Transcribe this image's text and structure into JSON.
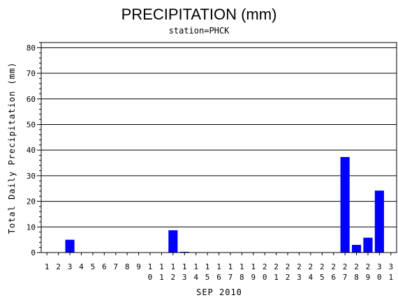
{
  "chart_data": {
    "type": "bar",
    "title": "PRECIPITATION (mm)",
    "subtitle": "station=PHCK",
    "xlabel": "SEP 2010",
    "ylabel": "Total Daily Precipitation (mm)",
    "ylim": [
      0,
      82
    ],
    "yticks": [
      0,
      10,
      20,
      30,
      40,
      50,
      60,
      70,
      80
    ],
    "grid": true,
    "bar_color": "#0000ff",
    "categories": [
      "1",
      "2",
      "3",
      "4",
      "5",
      "6",
      "7",
      "8",
      "9",
      "10",
      "11",
      "12",
      "13",
      "14",
      "15",
      "16",
      "17",
      "18",
      "19",
      "20",
      "21",
      "22",
      "23",
      "24",
      "25",
      "26",
      "27",
      "28",
      "29",
      "30",
      "31"
    ],
    "values": [
      0,
      0,
      5,
      0,
      0,
      0,
      0,
      0,
      0,
      0,
      0,
      8.7,
      0.3,
      0,
      0,
      0,
      0,
      0,
      0,
      0,
      0,
      0,
      0,
      0,
      0,
      0,
      37.3,
      3,
      5.8,
      24.2,
      0
    ]
  }
}
